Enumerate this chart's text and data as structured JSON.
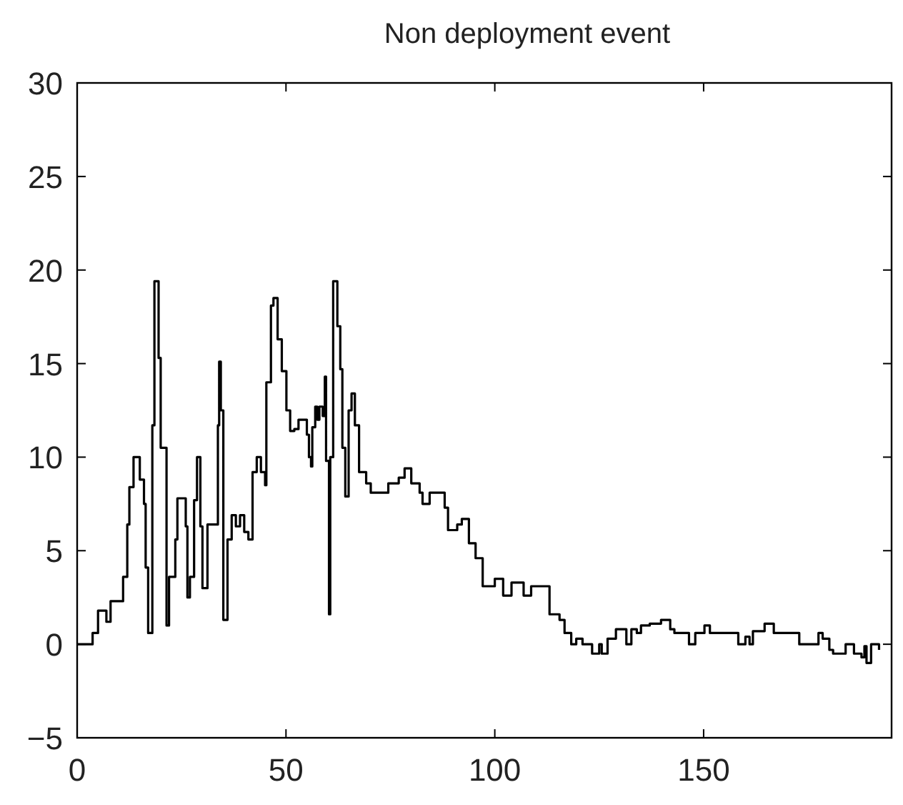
{
  "chart_data": {
    "type": "step",
    "title": "Non deployment event",
    "xlim": [
      0,
      195
    ],
    "ylim": [
      -5,
      30
    ],
    "xticks": [
      0,
      50,
      100,
      150
    ],
    "yticks": [
      -5,
      0,
      5,
      10,
      15,
      20,
      25,
      30
    ],
    "grid": false,
    "series": [
      {
        "color": "#000000",
        "x": [
          0,
          3.7,
          5,
          7,
          8,
          11,
          12,
          12.5,
          13.5,
          13.7,
          15,
          16,
          16.4,
          17,
          18,
          18.5,
          19.5,
          20,
          21.4,
          22,
          23.5,
          24,
          26,
          26.4,
          27,
          28,
          28.7,
          29.5,
          30,
          31.2,
          33.7,
          34,
          34.4,
          35,
          36,
          37,
          38,
          39,
          40,
          41,
          42,
          43,
          44,
          45,
          45.3,
          46.4,
          47,
          48,
          49,
          50.1,
          51,
          52,
          53,
          55,
          55.5,
          56,
          56.3,
          57,
          57.5,
          58,
          58.8,
          59.3,
          59.6,
          60.3,
          60.6,
          61.3,
          62.3,
          63,
          63.5,
          64.2,
          65,
          65.7,
          66.5,
          67.5,
          69.2,
          70.3,
          74.5,
          77,
          78.4,
          80,
          82,
          82.7,
          84.4,
          88,
          88.8,
          91,
          92.1,
          93.8,
          95.4,
          97.1,
          100,
          102,
          104,
          106.9,
          108.7,
          113.1,
          115.5,
          116.7,
          118.3,
          119.5,
          121,
          123.3,
          125,
          125.6,
          127,
          129,
          131.5,
          132.7,
          134,
          135,
          137.1,
          139.8,
          142,
          143,
          146.5,
          148,
          150.2,
          151.5,
          158.3,
          160,
          161,
          161.8,
          164.6,
          166.8,
          172.9,
          177.5,
          178.5,
          180.1,
          181,
          184,
          186,
          187.8,
          188.5,
          189,
          190.1,
          192
        ],
        "values": [
          0,
          0.6,
          1.8,
          1.2,
          2.3,
          3.6,
          6.4,
          8.4,
          10,
          10,
          8.8,
          7.5,
          4.1,
          0.6,
          11.7,
          19.4,
          15.3,
          10.5,
          1,
          3.6,
          5.6,
          7.8,
          6.3,
          2.5,
          3.6,
          7.7,
          10,
          6.3,
          3,
          6.4,
          11.7,
          15.1,
          12.5,
          1.3,
          5.6,
          6.9,
          6.3,
          6.9,
          6,
          5.6,
          9.2,
          10,
          9.2,
          8.5,
          14,
          18.1,
          18.5,
          16.3,
          14.6,
          12.5,
          11.4,
          11.5,
          12,
          11.2,
          10,
          9.5,
          11.6,
          12.7,
          12,
          12.7,
          12.2,
          14.3,
          9.8,
          1.6,
          10,
          19.4,
          17,
          14.7,
          10.5,
          7.9,
          12.5,
          13.4,
          11.7,
          9.2,
          8.6,
          8.1,
          8.6,
          8.9,
          9.4,
          8.6,
          8.1,
          7.5,
          8.1,
          7.3,
          6.1,
          6.4,
          6.7,
          5.4,
          4.6,
          3.1,
          3.5,
          2.6,
          3.3,
          2.6,
          3.1,
          1.6,
          1.3,
          0.6,
          0,
          0.3,
          0,
          -0.5,
          0,
          -0.5,
          0.3,
          0.8,
          0,
          0.8,
          0.6,
          1,
          1.1,
          1.3,
          0.8,
          0.6,
          0,
          0.6,
          1,
          0.6,
          0,
          0.4,
          0,
          0.7,
          1.1,
          0.6,
          0,
          0.6,
          0.3,
          -0.3,
          -0.5,
          0,
          -0.5,
          -0.7,
          -0.1,
          -1,
          0,
          -0.3
        ]
      }
    ]
  }
}
